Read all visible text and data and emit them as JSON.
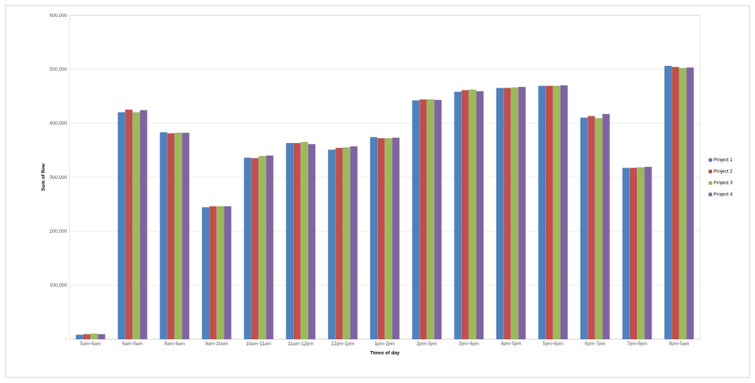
{
  "chart_data": {
    "type": "bar",
    "xlabel": "Times of day",
    "ylabel": "Sum of flow",
    "categories": [
      "5am-6am",
      "6am-8am",
      "8am-9am",
      "9am-10am",
      "10am-11am",
      "11am-12pm",
      "12pm-1pm",
      "1pm-2pm",
      "2pm-3pm",
      "3pm-4pm",
      "4pm-5pm",
      "5pm-6pm",
      "6pm-7pm",
      "7pm-8pm",
      "8pm-5am"
    ],
    "series": [
      {
        "name": "Project 1",
        "color": "#4f81bd",
        "values": [
          8000,
          420000,
          383000,
          244000,
          336000,
          363000,
          351000,
          374000,
          442000,
          458000,
          465000,
          469000,
          410000,
          317000,
          506000
        ]
      },
      {
        "name": "Project 2",
        "color": "#c0504d",
        "values": [
          9000,
          425000,
          381000,
          246000,
          335000,
          363000,
          354000,
          372000,
          444000,
          461000,
          465000,
          469000,
          413000,
          317000,
          504000
        ]
      },
      {
        "name": "Project 3",
        "color": "#9bbb59",
        "values": [
          10000,
          420000,
          382000,
          246000,
          339000,
          365000,
          355000,
          372000,
          444000,
          462000,
          466000,
          469000,
          409000,
          318000,
          502000
        ]
      },
      {
        "name": "Project 4",
        "color": "#8064a2",
        "values": [
          9000,
          424000,
          382000,
          246000,
          340000,
          361000,
          357000,
          373000,
          443000,
          459000,
          467000,
          470000,
          417000,
          319000,
          503000
        ]
      }
    ],
    "ylim": [
      0,
      600000
    ],
    "yticks": [
      {
        "value": 0,
        "label": "-"
      },
      {
        "value": 100000,
        "label": "100,000"
      },
      {
        "value": 200000,
        "label": "200,000"
      },
      {
        "value": 300000,
        "label": "300,000"
      },
      {
        "value": 400000,
        "label": "400,000"
      },
      {
        "value": 500000,
        "label": "500,000"
      },
      {
        "value": 600000,
        "label": "600,000"
      }
    ],
    "grid": "y",
    "legend": "right"
  }
}
